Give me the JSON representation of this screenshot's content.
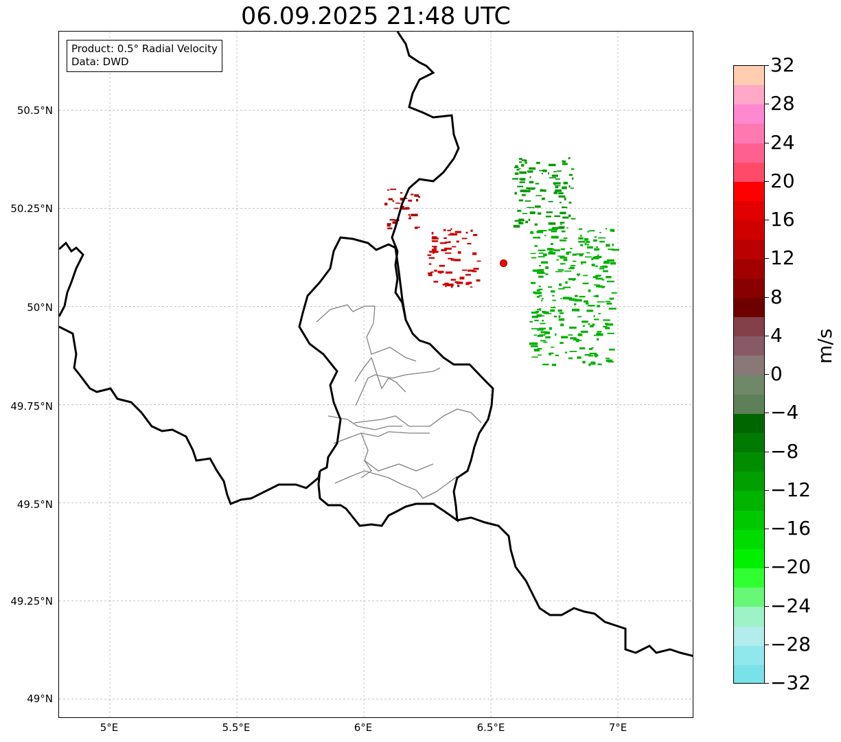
{
  "title": "06.09.2025 21:48 UTC",
  "info_box": {
    "line1": "Product: 0.5° Radial Velocity",
    "line2": "Data: DWD"
  },
  "map_axes": {
    "lon_range": [
      4.8,
      7.3
    ],
    "lat_range": [
      48.95,
      50.7
    ],
    "lat_labels": [
      "50.5°N",
      "50.25°N",
      "50°N",
      "49.75°N",
      "49.5°N",
      "49.25°N",
      "49°N"
    ],
    "lon_labels": [
      "5°E",
      "5.5°E",
      "6°E",
      "6.5°E",
      "7°E"
    ],
    "grid": true
  },
  "radar_site": {
    "lon": 6.55,
    "lat": 50.11,
    "color": "#ff0000"
  },
  "colorbar": {
    "unit": "m/s",
    "range": [
      -32,
      32
    ],
    "tick_labels": [
      "32",
      "28",
      "24",
      "20",
      "16",
      "12",
      "8",
      "4",
      "0",
      "−4",
      "−8",
      "−12",
      "−16",
      "−20",
      "−24",
      "−28",
      "−32"
    ],
    "colors_top_to_bottom": [
      "#ffcdb0",
      "#ffa8c8",
      "#ff88d0",
      "#ff78b0",
      "#ff6090",
      "#ff4a68",
      "#ff0000",
      "#e20000",
      "#d00000",
      "#bb0000",
      "#a20000",
      "#880000",
      "#6e0000",
      "#844048",
      "#885a68",
      "#8a7878",
      "#6e8868",
      "#5e8058",
      "#006600",
      "#007a00",
      "#008e00",
      "#00a000",
      "#00b400",
      "#00c800",
      "#00dc00",
      "#00f000",
      "#30ff30",
      "#68f878",
      "#9ef2c6",
      "#b2ecec",
      "#90e8ec",
      "#78e2e8"
    ]
  },
  "echo_regions": [
    {
      "kind": "inbound-red",
      "color": "#b00000",
      "lon": [
        6.08,
        6.22
      ],
      "lat": [
        50.2,
        50.3
      ]
    },
    {
      "kind": "inbound-red",
      "color": "#cc0000",
      "lon": [
        6.25,
        6.45
      ],
      "lat": [
        50.05,
        50.2
      ]
    },
    {
      "kind": "outbound-green",
      "color": "#00b000",
      "lon": [
        6.65,
        6.98
      ],
      "lat": [
        49.85,
        50.2
      ]
    },
    {
      "kind": "outbound-green",
      "color": "#009900",
      "lon": [
        6.58,
        6.82
      ],
      "lat": [
        50.2,
        50.38
      ]
    }
  ]
}
